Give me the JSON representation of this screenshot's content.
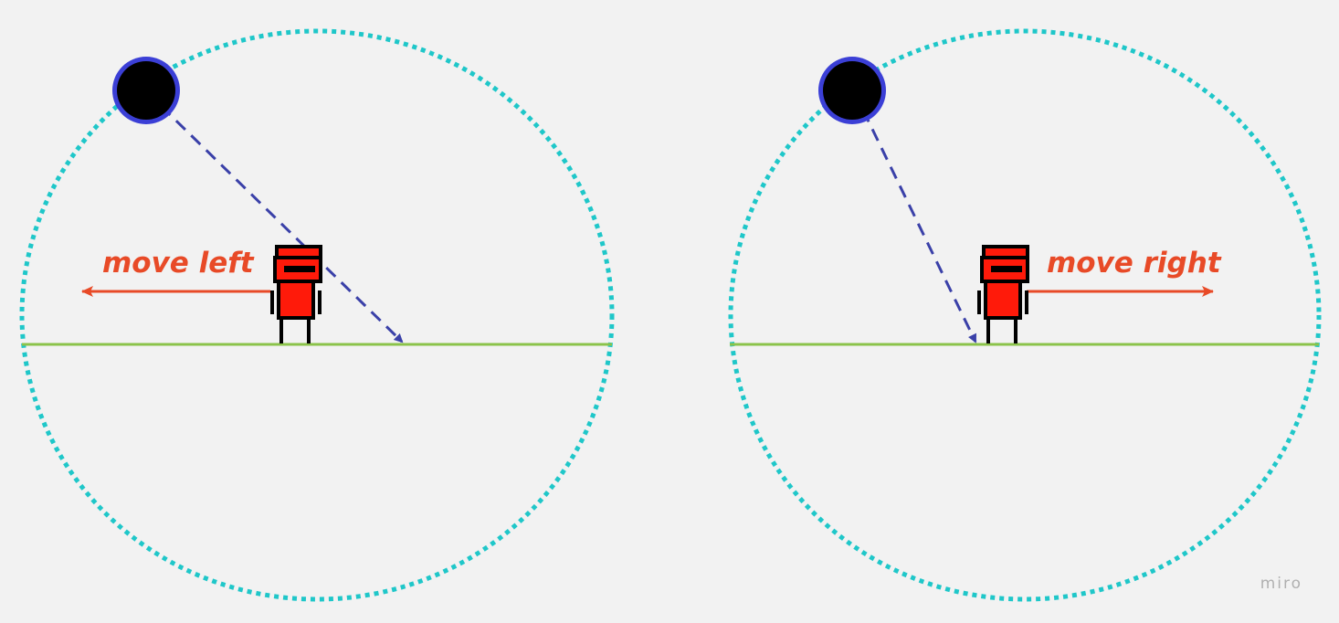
{
  "diagram": {
    "colors": {
      "background": "#f2f2f2",
      "range_circle": "#1fc7c9",
      "ground": "#8bc34a",
      "trajectory": "#3a40a8",
      "move_arrow": "#e84a27",
      "ball": "#000000",
      "ball_edge": "#3b3fd6",
      "character_body": "#ff1a0a",
      "character_outline": "#000000"
    },
    "panels": [
      {
        "id": "left",
        "move_label": "move left",
        "direction": "left"
      },
      {
        "id": "right",
        "move_label": "move right",
        "direction": "right"
      }
    ]
  },
  "watermark": {
    "text": "miro"
  }
}
